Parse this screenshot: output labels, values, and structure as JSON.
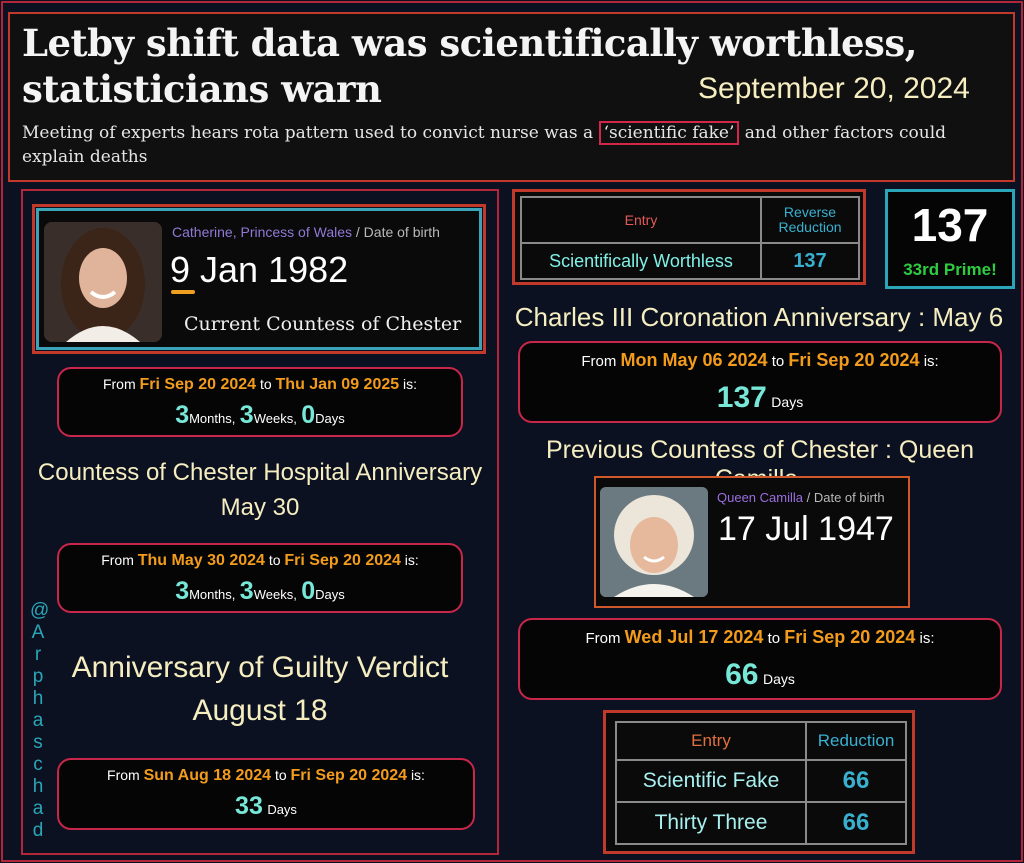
{
  "header": {
    "headline": "Letby shift data was scientifically worthless, statisticians warn",
    "date": "September 20, 2024",
    "subhead_before": "Meeting of experts hears rota pattern used to convict nurse was a ",
    "subhead_highlight": "‘scientific fake’",
    "subhead_after": " and other factors could explain deaths"
  },
  "kate_card": {
    "name": "Catherine, Princess of Wales",
    "sep": " / Date of birth",
    "dob": "9 Jan 1982",
    "caption": "Current Countess of Chester"
  },
  "calc1": {
    "from_label": "From",
    "from": "Fri Sep 20 2024",
    "to_label": "to",
    "to": "Thu Jan 09 2025",
    "is_label": "is:",
    "n1": "3",
    "u1": "Months,",
    "n2": "3",
    "u2": "Weeks,",
    "n3": "0",
    "u3": "Days"
  },
  "caption_hospital": {
    "line1": "Countess of Chester Hospital Anniversary",
    "line2": "May 30"
  },
  "calc2": {
    "from_label": "From",
    "from": "Thu May 30 2024",
    "to_label": "to",
    "to": "Fri Sep 20 2024",
    "is_label": "is:",
    "n1": "3",
    "u1": "Months,",
    "n2": "3",
    "u2": "Weeks,",
    "n3": "0",
    "u3": "Days"
  },
  "caption_verdict": {
    "line1": "Anniversary of Guilty Verdict",
    "line2": "August 18"
  },
  "calc3": {
    "from_label": "From",
    "from": "Sun Aug 18 2024",
    "to_label": "to",
    "to": "Fri Sep 20 2024",
    "is_label": "is:",
    "n": "33",
    "u": "Days"
  },
  "handle": [
    "@",
    "A",
    "r",
    "p",
    "h",
    "a",
    "s",
    "c",
    "h",
    "a",
    "d"
  ],
  "table1": {
    "col1": "Entry",
    "col2": "Reverse Reduction",
    "row_entry": "Scientifically Worthless",
    "row_value": "137"
  },
  "prime": {
    "number": "137",
    "label": "33rd Prime!"
  },
  "caption_coronation": "Charles III Coronation Anniversary : May 6",
  "calc4": {
    "from_label": "From",
    "from": "Mon May 06 2024",
    "to_label": "to",
    "to": "Fri Sep 20 2024",
    "is_label": "is:",
    "n": "137",
    "u": "Days"
  },
  "caption_previous": "Previous Countess of Chester : Queen Camilla.",
  "camilla_card": {
    "name": "Queen Camilla",
    "sep": " / Date of birth",
    "dob": "17 Jul 1947"
  },
  "calc5": {
    "from_label": "From",
    "from": "Wed Jul 17 2024",
    "to_label": "to",
    "to": "Fri Sep 20 2024",
    "is_label": "is:",
    "n": "66",
    "u": "Days"
  },
  "table2": {
    "col1": "Entry",
    "col2": "Reduction",
    "rows": [
      {
        "entry": "Scientific Fake",
        "value": "66"
      },
      {
        "entry": "Thirty Three",
        "value": "66"
      }
    ]
  },
  "colors": {
    "accent_red": "#c0392b",
    "date_orange": "#f39c1c",
    "number_teal": "#77e8d8",
    "caption_cream": "#f6eec0",
    "prime_green": "#2ecc40"
  }
}
